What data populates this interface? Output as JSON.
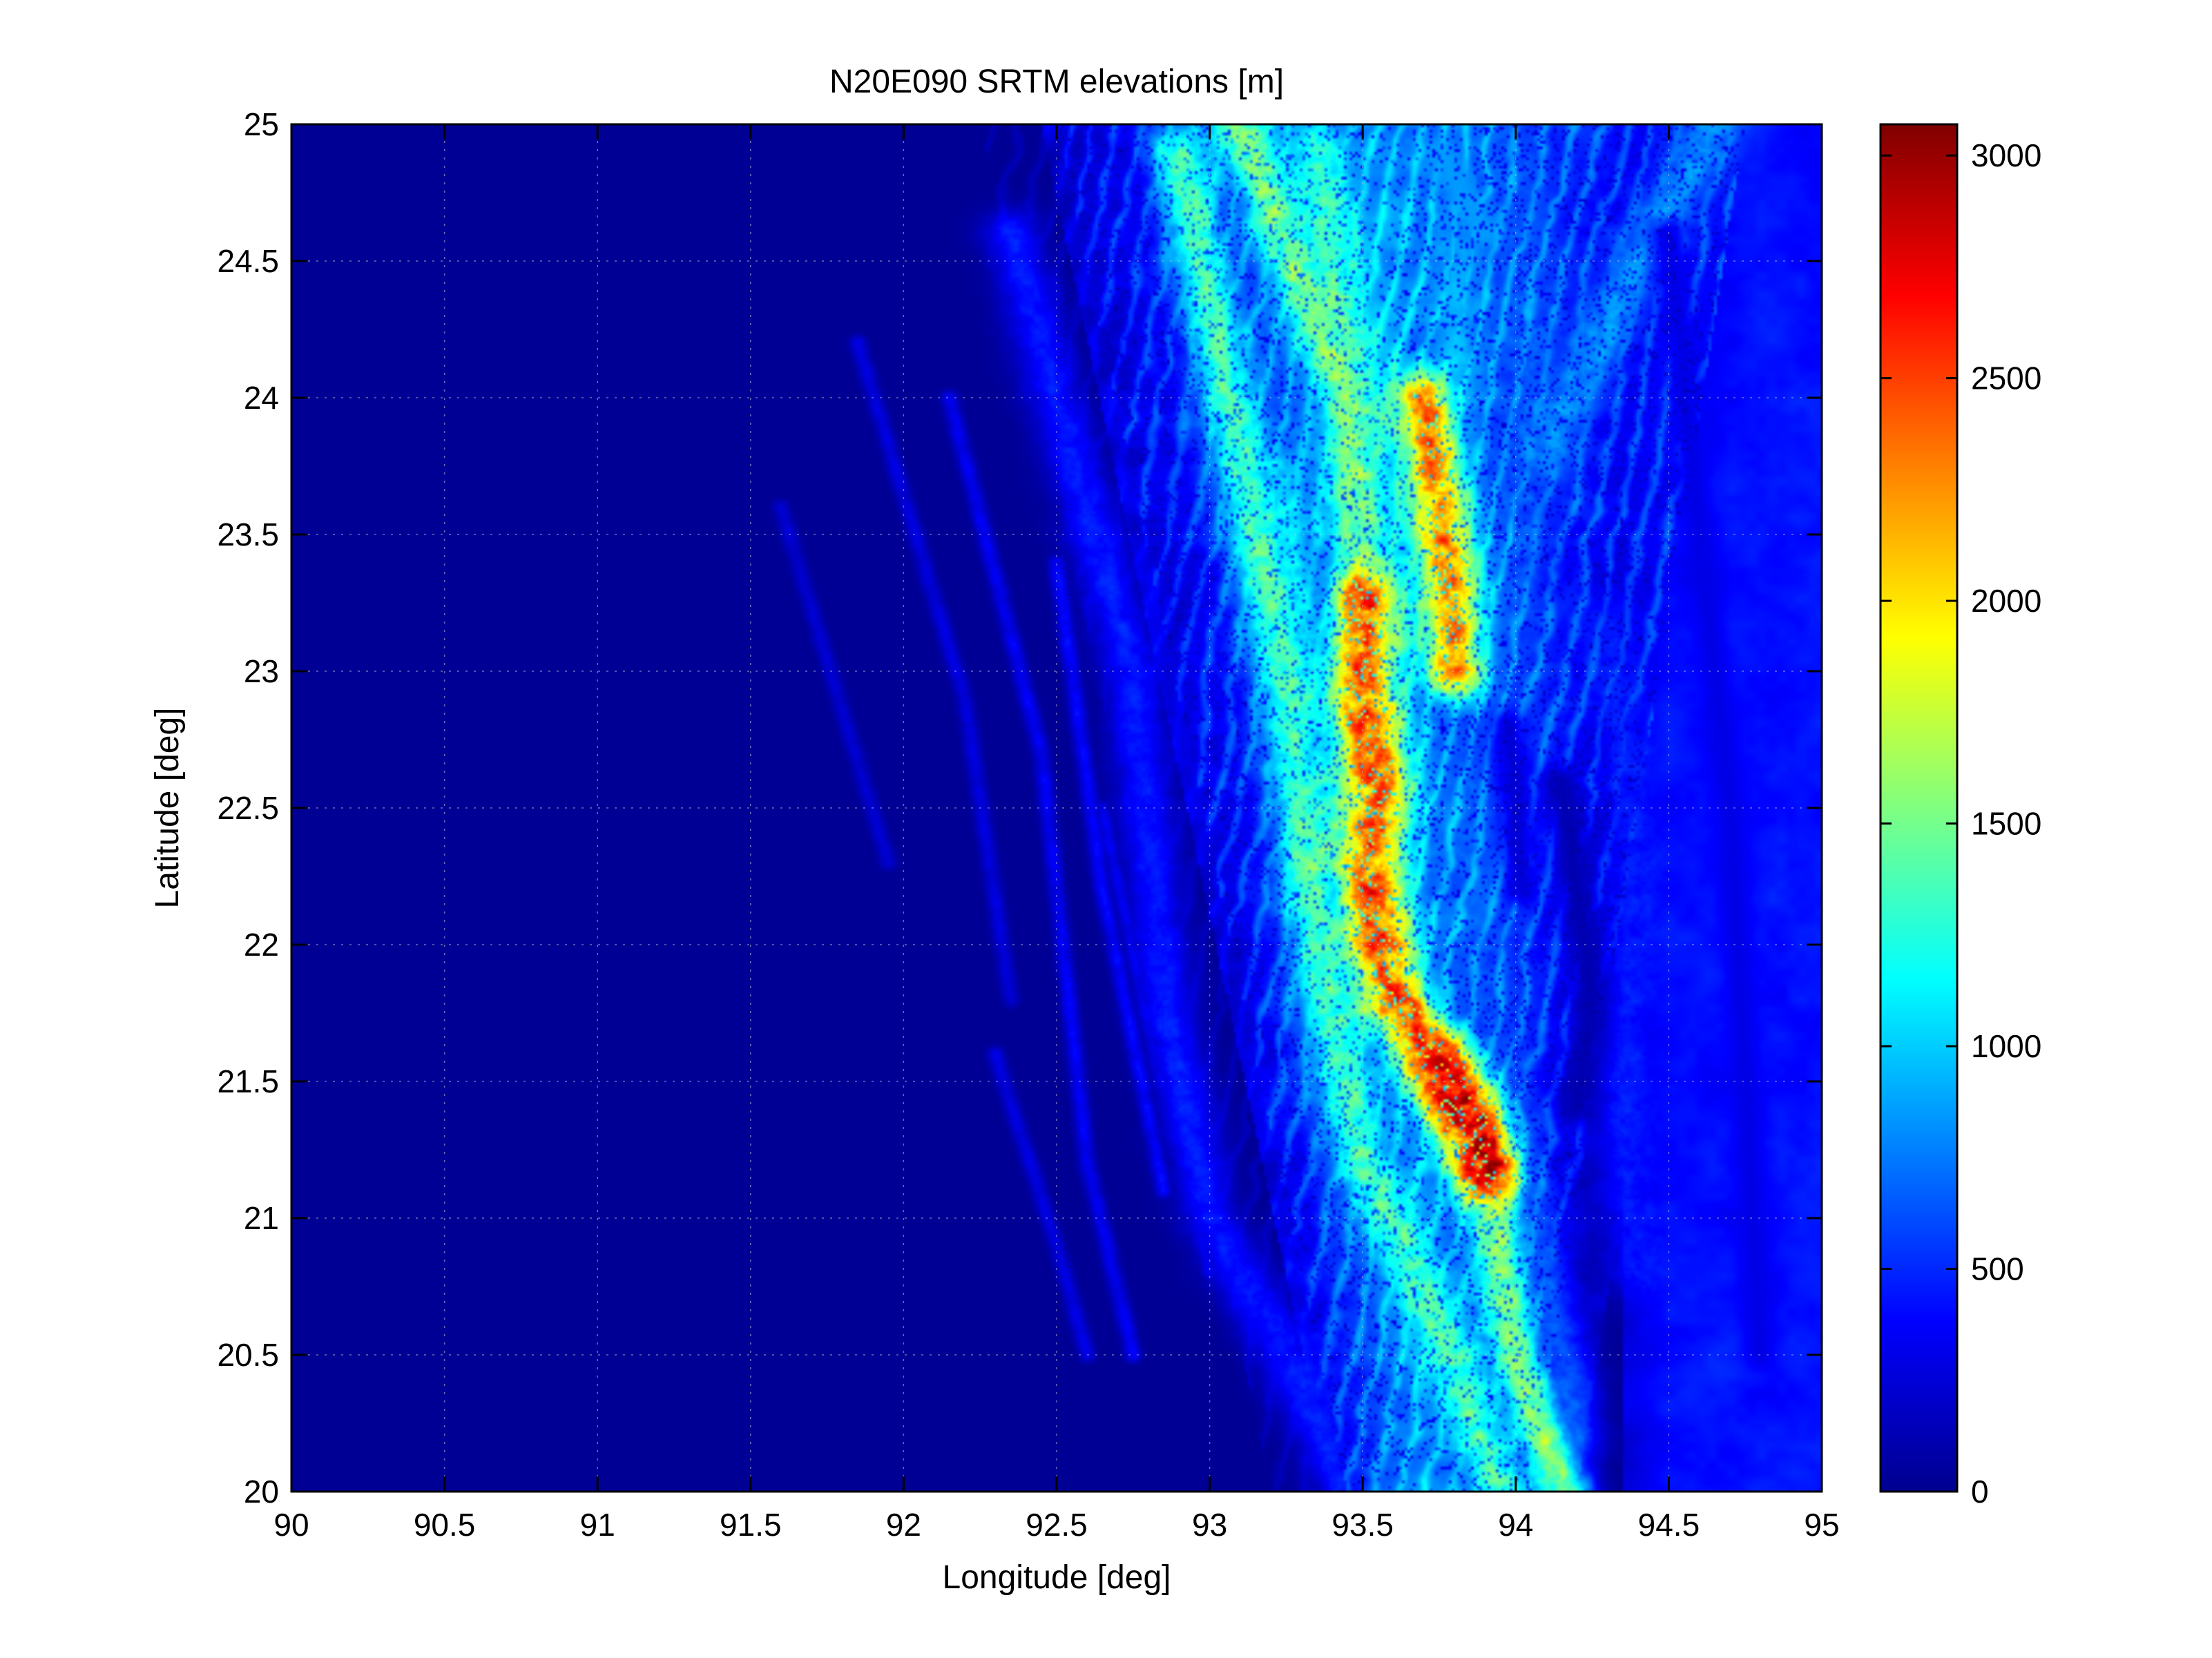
{
  "chart_data": {
    "type": "heatmap",
    "title": "N20E090 SRTM elevations [m]",
    "xlabel": "Longitude [deg]",
    "ylabel": "Latitude [deg]",
    "xlim": [
      90,
      95
    ],
    "ylim": [
      20,
      25
    ],
    "x_ticks": [
      90,
      90.5,
      91,
      91.5,
      92,
      92.5,
      93,
      93.5,
      94,
      94.5,
      95
    ],
    "x_tick_labels": [
      "90",
      "90.5",
      "91",
      "91.5",
      "92",
      "92.5",
      "93",
      "93.5",
      "94",
      "94.5",
      "95"
    ],
    "y_ticks": [
      20,
      20.5,
      21,
      21.5,
      22,
      22.5,
      23,
      23.5,
      24,
      24.5,
      25
    ],
    "y_tick_labels": [
      "20",
      "20.5",
      "21",
      "21.5",
      "22",
      "22.5",
      "23",
      "23.5",
      "24",
      "24.5",
      "25"
    ],
    "grid": true,
    "colormap": "jet",
    "colorbar": {
      "clim": [
        0,
        3070
      ],
      "ticks": [
        0,
        500,
        1000,
        1500,
        2000,
        2500,
        3000
      ],
      "tick_labels": [
        "0",
        "500",
        "1000",
        "1500",
        "2000",
        "2500",
        "3000"
      ],
      "stops": [
        "#00008f",
        "#0000ff",
        "#0080ff",
        "#00ffff",
        "#80ff80",
        "#ffff00",
        "#ff8000",
        "#ff0000",
        "#800000"
      ]
    },
    "ranges": [
      {
        "points": [
          [
            92.35,
            24.6
          ],
          [
            92.75,
            23.0
          ],
          [
            92.85,
            21.8
          ],
          [
            93.0,
            21.0
          ],
          [
            93.25,
            20.5
          ],
          [
            93.45,
            20.0
          ]
        ],
        "peak": 500
      },
      {
        "points": [
          [
            92.9,
            24.9
          ],
          [
            93.1,
            23.8
          ],
          [
            93.25,
            23.0
          ],
          [
            93.35,
            22.0
          ],
          [
            93.5,
            21.2
          ],
          [
            93.75,
            20.6
          ],
          [
            93.95,
            20.0
          ]
        ],
        "peak": 1500
      },
      {
        "points": [
          [
            93.1,
            25.0
          ],
          [
            93.45,
            24.0
          ],
          [
            93.5,
            23.3
          ],
          [
            93.5,
            22.5
          ],
          [
            93.6,
            21.9
          ],
          [
            93.75,
            21.5
          ],
          [
            93.9,
            21.2
          ],
          [
            94.0,
            20.5
          ],
          [
            94.15,
            20.0
          ]
        ],
        "peak": 1700
      },
      {
        "points": [
          [
            93.35,
            24.9
          ],
          [
            93.5,
            23.9
          ]
        ],
        "peak": 1500
      },
      {
        "points": [
          [
            93.7,
            24.0
          ],
          [
            93.75,
            23.6
          ],
          [
            93.8,
            23.2
          ],
          [
            93.8,
            23.0
          ]
        ],
        "peak": 2500
      },
      {
        "points": [
          [
            93.5,
            23.3
          ],
          [
            93.5,
            22.9
          ],
          [
            93.55,
            22.6
          ],
          [
            93.52,
            22.3
          ],
          [
            93.55,
            22.0
          ],
          [
            93.6,
            21.8
          ],
          [
            93.72,
            21.6
          ],
          [
            93.78,
            21.45
          ],
          [
            93.85,
            21.3
          ],
          [
            93.9,
            21.15
          ]
        ],
        "peak": 2700
      },
      {
        "points": [
          [
            93.8,
            21.55
          ],
          [
            93.92,
            21.2
          ]
        ],
        "peak": 3000
      },
      {
        "points": [
          [
            93.95,
            24.95
          ],
          [
            94.05,
            24.2
          ],
          [
            94.0,
            23.3
          ],
          [
            93.85,
            22.7
          ],
          [
            93.9,
            21.8
          ],
          [
            94.05,
            21.0
          ],
          [
            94.2,
            20.2
          ]
        ],
        "peak": 700
      },
      {
        "points": [
          [
            94.65,
            25.0
          ],
          [
            94.4,
            24.5
          ],
          [
            94.1,
            23.8
          ]
        ],
        "peak": 900
      },
      {
        "points": [
          [
            94.3,
            23.2
          ],
          [
            94.4,
            22.3
          ],
          [
            94.35,
            21.5
          ],
          [
            94.4,
            20.8
          ]
        ],
        "peak": 500
      },
      {
        "points": [
          [
            94.6,
            24.1
          ],
          [
            94.75,
            23.0
          ],
          [
            94.8,
            22.0
          ],
          [
            94.85,
            21.0
          ]
        ],
        "peak": 350
      },
      {
        "points": [
          [
            93.2,
            23.7
          ],
          [
            93.3,
            23.0
          ],
          [
            93.4,
            22.4
          ]
        ],
        "peak": 1200
      }
    ],
    "valleys": [
      {
        "points": [
          [
            93.75,
            24.9
          ],
          [
            93.9,
            24.6
          ]
        ],
        "floor": 850
      },
      {
        "points": [
          [
            94.15,
            22.6
          ],
          [
            94.25,
            21.8
          ],
          [
            94.2,
            21.4
          ]
        ],
        "floor": 120
      },
      {
        "points": [
          [
            93.98,
            22.8
          ],
          [
            94.02,
            22.2
          ]
        ],
        "floor": 250
      },
      {
        "points": [
          [
            94.5,
            24.6
          ],
          [
            94.6,
            23.5
          ],
          [
            94.7,
            22.5
          ],
          [
            94.75,
            21.5
          ],
          [
            94.8,
            20.5
          ]
        ],
        "floor": 300
      }
    ],
    "lowland_ridges": [
      {
        "points": [
          [
            91.6,
            23.6
          ],
          [
            91.95,
            22.3
          ]
        ],
        "peak": 250
      },
      {
        "points": [
          [
            91.85,
            24.2
          ],
          [
            92.2,
            22.9
          ],
          [
            92.35,
            21.8
          ]
        ],
        "peak": 300
      },
      {
        "points": [
          [
            92.15,
            24.0
          ],
          [
            92.45,
            22.7
          ],
          [
            92.6,
            21.2
          ],
          [
            92.75,
            20.5
          ]
        ],
        "peak": 380
      },
      {
        "points": [
          [
            92.5,
            23.4
          ],
          [
            92.65,
            22.2
          ],
          [
            92.85,
            21.1
          ]
        ],
        "peak": 420
      },
      {
        "points": [
          [
            92.65,
            22.5
          ],
          [
            92.8,
            21.7
          ],
          [
            93.0,
            20.8
          ]
        ],
        "peak": 360
      },
      {
        "points": [
          [
            92.3,
            21.6
          ],
          [
            92.5,
            20.9
          ],
          [
            92.6,
            20.5
          ]
        ],
        "peak": 300
      }
    ],
    "east_plateau": {
      "x_from": 94.35,
      "level": 420
    },
    "plateau": {
      "center": [
        93.8,
        24.1
      ],
      "level": 1000
    }
  }
}
